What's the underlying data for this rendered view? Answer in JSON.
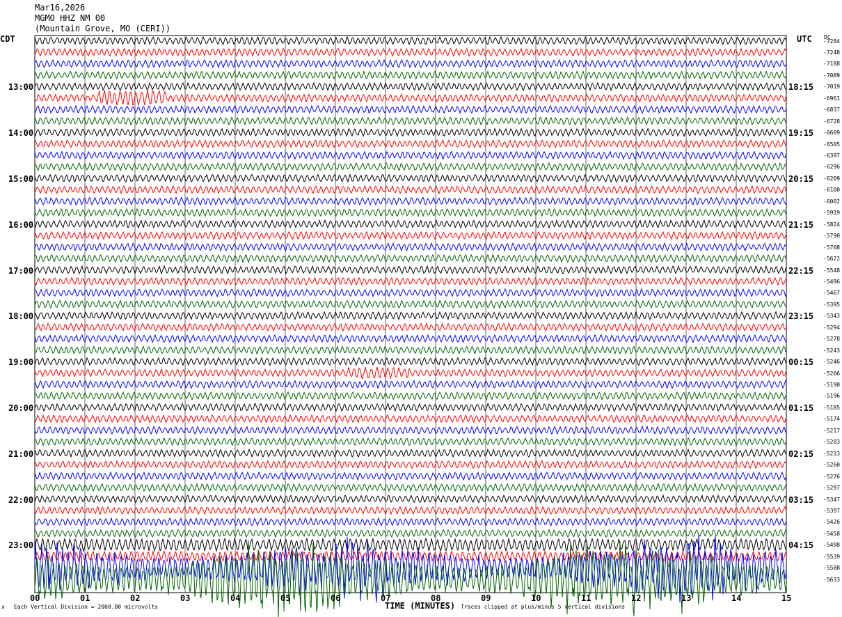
{
  "header": {
    "date": "Mar16,2026",
    "station": "MGMO HHZ NM 00",
    "location": "(Mountain Grove, MO (CERI))"
  },
  "left_tz": "CDT",
  "right_tz": "UTC",
  "dc_label": "DC",
  "footer": {
    "scale": "Each Vertical Division = 2000.00 microvolts",
    "clip": "Traces clipped at plus/minus 5 vertical divisions",
    "corner": "x"
  },
  "chart_data": {
    "type": "line",
    "title": "",
    "xlabel": "TIME (MINUTES)",
    "x_ticks": [
      "00",
      "01",
      "02",
      "03",
      "04",
      "05",
      "06",
      "07",
      "08",
      "09",
      "10",
      "11",
      "12",
      "13",
      "14",
      "15"
    ],
    "xlim": [
      0,
      15
    ],
    "grid": true,
    "trace_colors": [
      "#000000",
      "#ff0000",
      "#0000ff",
      "#006400"
    ],
    "row_count": 48,
    "left_hour_labels": [
      "13:00",
      "14:00",
      "15:00",
      "16:00",
      "17:00",
      "18:00",
      "19:00",
      "20:00",
      "21:00",
      "22:00",
      "23:00"
    ],
    "right_hour_labels": [
      "18:15",
      "19:15",
      "20:15",
      "21:15",
      "22:15",
      "23:15",
      "00:15",
      "01:15",
      "02:15",
      "03:15",
      "04:15"
    ],
    "dc_offsets": [
      "-7284",
      "-7248",
      "-7188",
      "-7089",
      "-7019",
      "-6961",
      "-6837",
      "-6728",
      "-6609",
      "-6505",
      "-6397",
      "-6296",
      "-6209",
      "-6100",
      "-6002",
      "-5919",
      "-5824",
      "-5790",
      "-5708",
      "-5622",
      "-5548",
      "-5496",
      "-5467",
      "-5395",
      "-5343",
      "-5294",
      "-5278",
      "-5243",
      "-5246",
      "-5206",
      "-5190",
      "-5196",
      "-5185",
      "-5174",
      "-5217",
      "-5203",
      "-5213",
      "-5260",
      "-5276",
      "-5297",
      "-5347",
      "-5397",
      "-5426",
      "-5458",
      "-5498",
      "-5539",
      "-5588",
      "-5633"
    ],
    "row_amplitude_divisions": [
      0.3,
      0.3,
      0.3,
      0.3,
      0.3,
      0.3,
      0.3,
      0.3,
      0.3,
      0.3,
      0.3,
      0.3,
      0.3,
      0.3,
      0.3,
      0.3,
      0.3,
      0.3,
      0.3,
      0.3,
      0.3,
      0.3,
      0.3,
      0.3,
      0.3,
      0.3,
      0.3,
      0.3,
      0.3,
      0.3,
      0.3,
      0.3,
      0.3,
      0.3,
      0.3,
      0.3,
      0.3,
      0.3,
      0.3,
      0.3,
      0.3,
      0.3,
      0.3,
      0.3,
      0.5,
      0.4,
      2.5,
      3.0
    ]
  }
}
